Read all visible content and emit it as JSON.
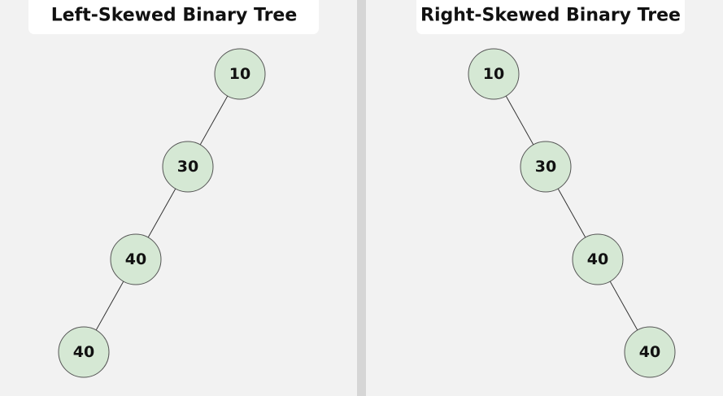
{
  "panels": [
    {
      "title": "Left-Skewed Binary Tree",
      "nodes": [
        {
          "label": "10"
        },
        {
          "label": "30"
        },
        {
          "label": "40"
        },
        {
          "label": "40"
        }
      ]
    },
    {
      "title": "Right-Skewed Binary Tree",
      "nodes": [
        {
          "label": "10"
        },
        {
          "label": "30"
        },
        {
          "label": "40"
        },
        {
          "label": "40"
        }
      ]
    }
  ]
}
